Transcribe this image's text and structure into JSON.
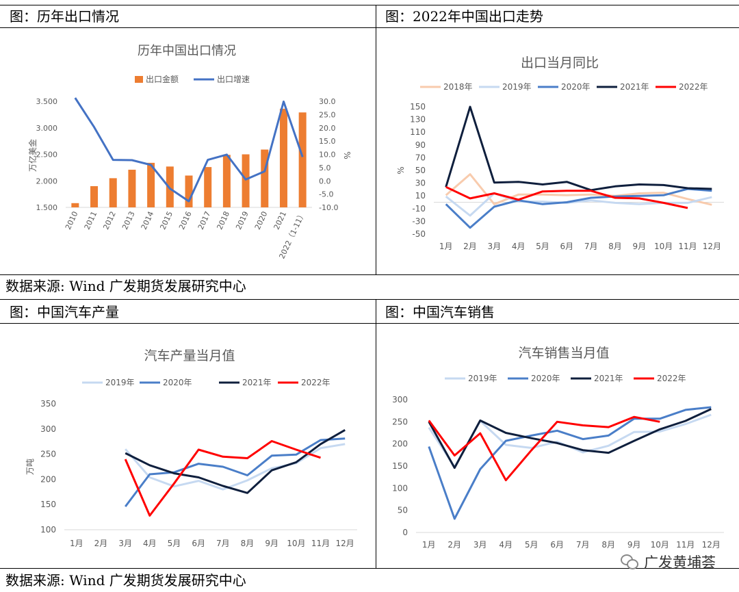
{
  "captions": {
    "tl": "图：历年出口情况",
    "tr": "图：2022年中国出口走势",
    "bl": "图：中国汽车产量",
    "br": "图：中国汽车销售",
    "source1": "数据来源: Wind  广发期货发展研究中心",
    "source2": "数据来源: Wind  广发期货发展研究中心"
  },
  "watermark": "广发黄埔荟",
  "chart_data": [
    {
      "id": "c1",
      "type": "bar+line",
      "title": "历年中国出口情况",
      "ylabel": "万亿美金",
      "y2label": "%",
      "ylim": [
        1.5,
        3.5
      ],
      "y2lim": [
        -10,
        30
      ],
      "yticks": [
        "1.500",
        "2.000",
        "2.500",
        "3.000",
        "3.500"
      ],
      "y2ticks": [
        "-10.0",
        "-5.0",
        "0.0",
        "5.0",
        "10.0",
        "15.0",
        "20.0",
        "25.0",
        "30.0"
      ],
      "categories": [
        "2010",
        "2011",
        "2012",
        "2013",
        "2014",
        "2015",
        "2016",
        "2017",
        "2018",
        "2019",
        "2020",
        "2021",
        "2022（1-11）"
      ],
      "series": [
        {
          "name": "出口金额",
          "kind": "bar",
          "color": "#ED7D31",
          "values": [
            1.58,
            1.9,
            2.05,
            2.21,
            2.34,
            2.27,
            2.1,
            2.26,
            2.49,
            2.5,
            2.59,
            3.36,
            3.29
          ]
        },
        {
          "name": "出口增速",
          "kind": "line",
          "color": "#4472C4",
          "values": [
            31.3,
            20.3,
            7.9,
            7.8,
            6.0,
            -2.9,
            -7.7,
            7.9,
            9.9,
            0.5,
            3.6,
            29.9,
            9.0
          ]
        }
      ]
    },
    {
      "id": "c2",
      "type": "line",
      "title": "出口当月同比",
      "ylabel": "%",
      "ylim": [
        -50,
        150
      ],
      "yticks": [
        "-50",
        "-30",
        "-10",
        "10",
        "30",
        "50",
        "70",
        "90",
        "110",
        "130",
        "150"
      ],
      "categories": [
        "1月",
        "2月",
        "3月",
        "4月",
        "5月",
        "6月",
        "7月",
        "8月",
        "9月",
        "10月",
        "11月",
        "12月"
      ],
      "series": [
        {
          "name": "2018年",
          "color": "#F8CBAD",
          "values": [
            11,
            44,
            -3,
            12,
            12,
            11,
            12,
            10,
            14,
            15,
            5,
            -4
          ]
        },
        {
          "name": "2019年",
          "color": "#C6D9F1",
          "values": [
            9,
            -21,
            14,
            1,
            1,
            -1,
            3,
            -1,
            -3,
            -1,
            -1,
            8
          ]
        },
        {
          "name": "2020年",
          "color": "#4A7EC8",
          "values": [
            -3,
            -40,
            -7,
            3,
            -3,
            0,
            7,
            9,
            10,
            11,
            21,
            18
          ]
        },
        {
          "name": "2021年",
          "color": "#0F1F3D",
          "values": [
            24,
            150,
            31,
            32,
            28,
            32,
            19,
            25,
            28,
            27,
            22,
            21
          ]
        },
        {
          "name": "2022年",
          "color": "#FF0000",
          "values": [
            24,
            6,
            14,
            4,
            17,
            18,
            18,
            7,
            6,
            -1,
            -9,
            null
          ]
        }
      ]
    },
    {
      "id": "c3",
      "type": "line",
      "title": "汽车产量当月值",
      "ylabel": "万吨",
      "ylim": [
        100,
        350
      ],
      "yticks": [
        "100",
        "150",
        "200",
        "250",
        "300",
        "350"
      ],
      "categories": [
        "1月",
        "2月",
        "3月",
        "4月",
        "5月",
        "6月",
        "7月",
        "8月",
        "9月",
        "10月",
        "11月",
        "12月"
      ],
      "series": [
        {
          "name": "2019年",
          "color": "#C6D9F1",
          "values": [
            null,
            null,
            260,
            204,
            186,
            197,
            180,
            198,
            222,
            232,
            262,
            270
          ]
        },
        {
          "name": "2020年",
          "color": "#4A7EC8",
          "values": [
            null,
            null,
            146,
            210,
            214,
            231,
            225,
            208,
            247,
            249,
            278,
            281
          ]
        },
        {
          "name": "2021年",
          "color": "#0F1F3D",
          "values": [
            null,
            null,
            252,
            228,
            212,
            204,
            187,
            173,
            218,
            234,
            270,
            298
          ]
        },
        {
          "name": "2022年",
          "color": "#FF0000",
          "values": [
            null,
            null,
            240,
            128,
            192,
            259,
            245,
            242,
            276,
            259,
            243,
            null
          ]
        }
      ]
    },
    {
      "id": "c4",
      "type": "line",
      "title": "汽车销售当月值",
      "ylabel": "",
      "ylim": [
        0,
        300
      ],
      "yticks": [
        "0",
        "50",
        "100",
        "150",
        "200",
        "250",
        "300"
      ],
      "categories": [
        "1月",
        "2月",
        "3月",
        "4月",
        "5月",
        "6月",
        "7月",
        "8月",
        "9月",
        "10月",
        "11月",
        "12月"
      ],
      "series": [
        {
          "name": "2019年",
          "color": "#C6D9F1",
          "values": [
            237,
            148,
            252,
            198,
            191,
            205,
            181,
            196,
            227,
            228,
            245,
            266
          ]
        },
        {
          "name": "2020年",
          "color": "#4A7EC8",
          "values": [
            194,
            31,
            143,
            207,
            219,
            230,
            211,
            219,
            257,
            257,
            277,
            283
          ]
        },
        {
          "name": "2021年",
          "color": "#0F1F3D",
          "values": [
            250,
            146,
            253,
            225,
            213,
            202,
            186,
            180,
            207,
            233,
            252,
            279
          ]
        },
        {
          "name": "2022年",
          "color": "#FF0000",
          "values": [
            253,
            174,
            224,
            118,
            186,
            250,
            242,
            238,
            261,
            250,
            null,
            null
          ]
        }
      ]
    }
  ]
}
